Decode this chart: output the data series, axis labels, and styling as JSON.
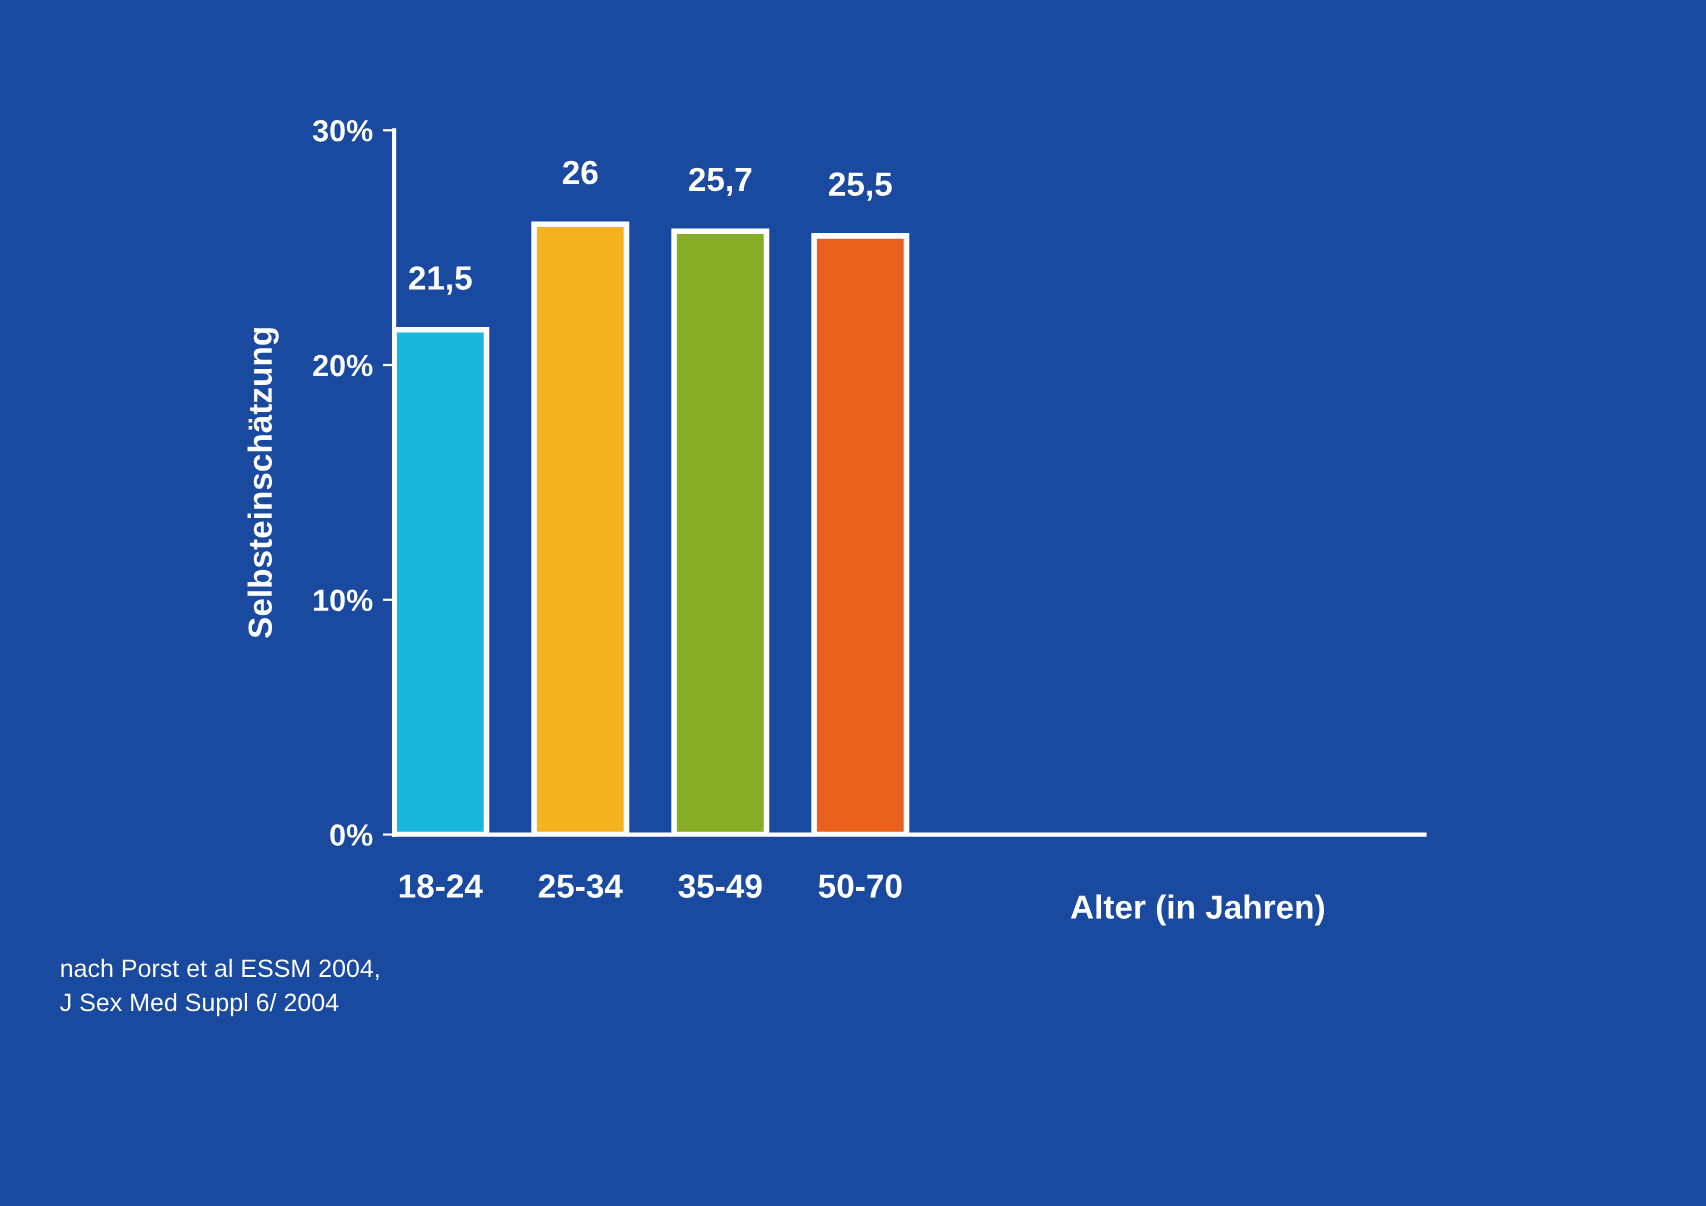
{
  "chart_data": {
    "type": "bar",
    "categories": [
      "18-24",
      "25-34",
      "35-49",
      "50-70"
    ],
    "values": [
      21.5,
      26,
      25.7,
      25.5
    ],
    "value_labels": [
      "21,5",
      "26",
      "25,7",
      "25,5"
    ],
    "colors": [
      "#19b6de",
      "#f4b31e",
      "#86ad24",
      "#e8601c"
    ],
    "xlabel": "Alter (in Jahren)",
    "ylabel": "Selbsteinschätzung",
    "ylim": [
      0,
      30
    ],
    "yticks": [
      {
        "value": 0,
        "label": "0%"
      },
      {
        "value": 10,
        "label": "10%"
      },
      {
        "value": 20,
        "label": "20%"
      },
      {
        "value": 30,
        "label": "30%"
      }
    ],
    "grid": false,
    "legend": false,
    "annotations": [
      "nach Porst et al ESSM 2004,\nJ Sex Med Suppl 6/ 2004"
    ]
  }
}
